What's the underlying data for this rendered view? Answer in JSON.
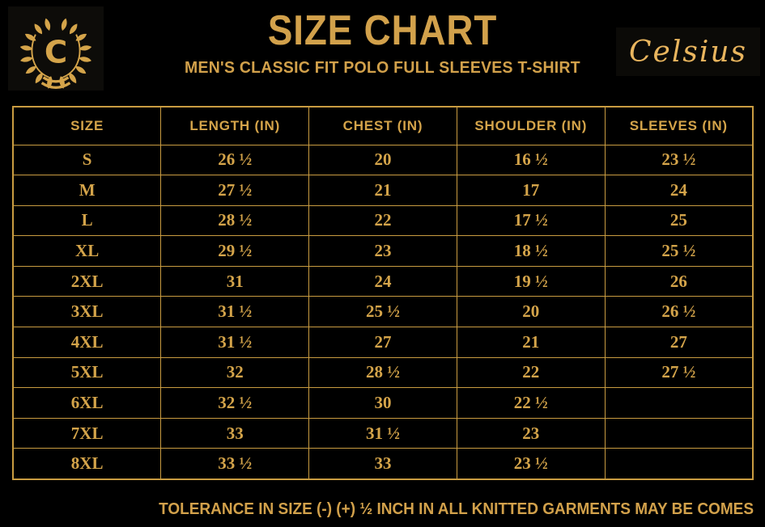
{
  "colors": {
    "background": "#000000",
    "gold": "#d2a14b",
    "gold_bright": "#e9b55e",
    "table_border": "#c99c41",
    "logo_panel": "#0d0c09"
  },
  "header": {
    "logo_letter": "C",
    "title": "SIZE CHART",
    "subtitle": "MEN'S CLASSIC FIT POLO FULL SLEEVES T-SHIRT",
    "brand": "Celsius"
  },
  "chart_data": {
    "type": "table",
    "title": "SIZE CHART",
    "subtitle": "MEN'S CLASSIC FIT POLO FULL SLEEVES T-SHIRT",
    "columns": [
      "SIZE",
      "LENGTH (IN)",
      "CHEST (IN)",
      "SHOULDER (IN)",
      "SLEEVES (IN)"
    ],
    "rows": [
      [
        "S",
        "26 ½",
        "20",
        "16 ½",
        "23 ½"
      ],
      [
        "M",
        "27 ½",
        "21",
        "17",
        "24"
      ],
      [
        "L",
        "28 ½",
        "22",
        "17 ½",
        "25"
      ],
      [
        "XL",
        "29 ½",
        "23",
        "18 ½",
        "25 ½"
      ],
      [
        "2XL",
        "31",
        "24",
        "19 ½",
        "26"
      ],
      [
        "3XL",
        "31 ½",
        "25 ½",
        "20",
        "26 ½"
      ],
      [
        "4XL",
        "31 ½",
        "27",
        "21",
        "27"
      ],
      [
        "5XL",
        "32",
        "28 ½",
        "22",
        "27 ½"
      ],
      [
        "6XL",
        "32 ½",
        "30",
        "22 ½",
        ""
      ],
      [
        "7XL",
        "33",
        "31 ½",
        "23",
        ""
      ],
      [
        "8XL",
        "33 ½",
        "33",
        "23 ½",
        ""
      ]
    ]
  },
  "footer": {
    "note": "TOLERANCE IN SIZE (-) (+)  ½ INCH IN ALL KNITTED GARMENTS MAY BE COMES"
  }
}
